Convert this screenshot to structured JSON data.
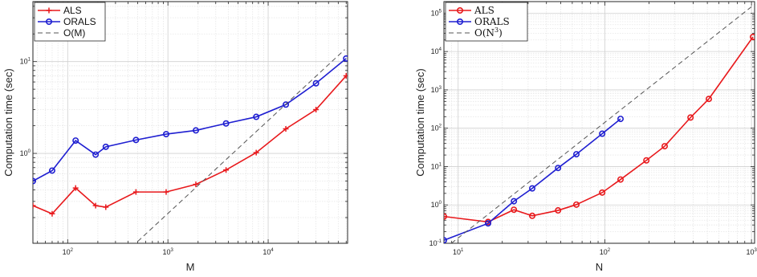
{
  "chart_data": [
    {
      "type": "line",
      "xscale": "log",
      "yscale": "log",
      "xlabel": "M",
      "ylabel": "Computation time (sec)",
      "xlim": [
        45,
        62000
      ],
      "ylim": [
        0.105,
        45
      ],
      "grid": true,
      "legend_position": "top-left",
      "x_ticks": [
        {
          "value": 100,
          "base": "10",
          "exp": "2"
        },
        {
          "value": 1000,
          "base": "10",
          "exp": "3"
        },
        {
          "value": 10000,
          "base": "10",
          "exp": "4"
        }
      ],
      "y_ticks": [
        {
          "value": 1,
          "base": "10",
          "exp": "0"
        },
        {
          "value": 10,
          "base": "10",
          "exp": "1"
        }
      ],
      "series": [
        {
          "name": "ALS",
          "color": "#e8191c",
          "marker": "plus",
          "x": [
            45,
            70,
            120,
            190,
            240,
            480,
            960,
            1900,
            3800,
            7600,
            15000,
            30000,
            60000
          ],
          "y": [
            0.27,
            0.22,
            0.42,
            0.27,
            0.26,
            0.38,
            0.38,
            0.46,
            0.66,
            1.02,
            1.85,
            3.0,
            7.0
          ]
        },
        {
          "name": "ORALS",
          "color": "#1f1fd1",
          "marker": "circle",
          "x": [
            45,
            70,
            120,
            190,
            240,
            480,
            960,
            1900,
            3800,
            7600,
            15000,
            30000,
            60000
          ],
          "y": [
            0.5,
            0.65,
            1.38,
            0.97,
            1.18,
            1.4,
            1.62,
            1.78,
            2.12,
            2.5,
            3.4,
            5.8,
            10.8
          ]
        },
        {
          "name": "O(M)",
          "color": "#555555",
          "marker": "none",
          "dashed": true,
          "x": [
            500,
            58000
          ],
          "y": [
            0.11,
            13.5
          ]
        }
      ]
    },
    {
      "type": "line",
      "xscale": "log",
      "yscale": "log",
      "xlabel": "N",
      "ylabel": "Computation time (sec)",
      "xlim": [
        8,
        1050
      ],
      "ylim": [
        0.1,
        200000
      ],
      "grid": true,
      "legend_position": "top-left",
      "x_ticks": [
        {
          "value": 10,
          "base": "10",
          "exp": "1"
        },
        {
          "value": 100,
          "base": "10",
          "exp": "2"
        },
        {
          "value": 1000,
          "base": "10",
          "exp": "3"
        }
      ],
      "y_ticks": [
        {
          "value": 0.1,
          "base": "10",
          "exp": "-1"
        },
        {
          "value": 1,
          "base": "10",
          "exp": "0"
        },
        {
          "value": 10,
          "base": "10",
          "exp": "1"
        },
        {
          "value": 100,
          "base": "10",
          "exp": "2"
        },
        {
          "value": 1000,
          "base": "10",
          "exp": "3"
        },
        {
          "value": 10000,
          "base": "10",
          "exp": "4"
        },
        {
          "value": 100000,
          "base": "10",
          "exp": "5"
        }
      ],
      "series": [
        {
          "name": "ALS",
          "color": "#e8191c",
          "marker": "circle",
          "x": [
            8,
            16,
            24,
            32,
            48,
            64,
            96,
            128,
            192,
            256,
            384,
            512,
            1024
          ],
          "y": [
            0.5,
            0.36,
            0.75,
            0.52,
            0.72,
            1.02,
            2.1,
            4.6,
            14.5,
            34,
            190,
            580,
            24000
          ]
        },
        {
          "name": "ORALS",
          "color": "#1f1fd1",
          "marker": "circle",
          "x": [
            8,
            16,
            24,
            32,
            48,
            64,
            96,
            128
          ],
          "y": [
            0.12,
            0.33,
            1.25,
            2.7,
            9.2,
            21,
            72,
            175
          ]
        },
        {
          "name": "O(N^3)",
          "label_base": "O(N",
          "label_sup": "3",
          "label_tail": ")",
          "color": "#555555",
          "marker": "none",
          "dashed": true,
          "x": [
            9,
            1050
          ],
          "y": [
            0.1,
            170000
          ]
        }
      ]
    }
  ]
}
